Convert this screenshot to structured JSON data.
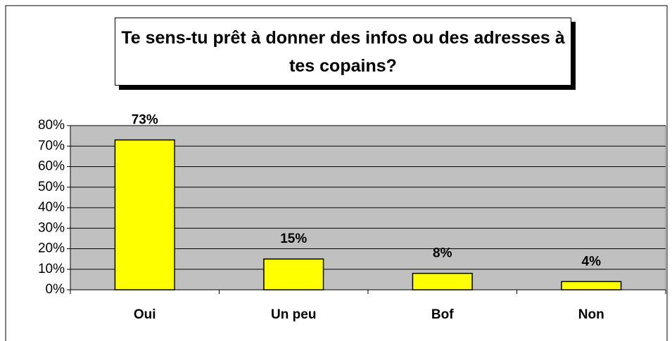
{
  "chart_data": {
    "type": "bar",
    "title": "Te sens-tu prêt à donner des infos ou des adresses à tes copains?",
    "categories": [
      "Oui",
      "Un peu",
      "Bof",
      "Non"
    ],
    "values": [
      73,
      15,
      8,
      4
    ],
    "value_labels": [
      "73%",
      "15%",
      "8%",
      "4%"
    ],
    "color": "#ffff00",
    "ylim": [
      0,
      80
    ],
    "yticks": [
      {
        "value": 0,
        "label": "0%"
      },
      {
        "value": 10,
        "label": "10%"
      },
      {
        "value": 20,
        "label": "20%"
      },
      {
        "value": 30,
        "label": "30%"
      },
      {
        "value": 40,
        "label": "40%"
      },
      {
        "value": 50,
        "label": "50%"
      },
      {
        "value": 60,
        "label": "60%"
      },
      {
        "value": 70,
        "label": "70%"
      },
      {
        "value": 80,
        "label": "80%"
      }
    ],
    "grid": true
  }
}
